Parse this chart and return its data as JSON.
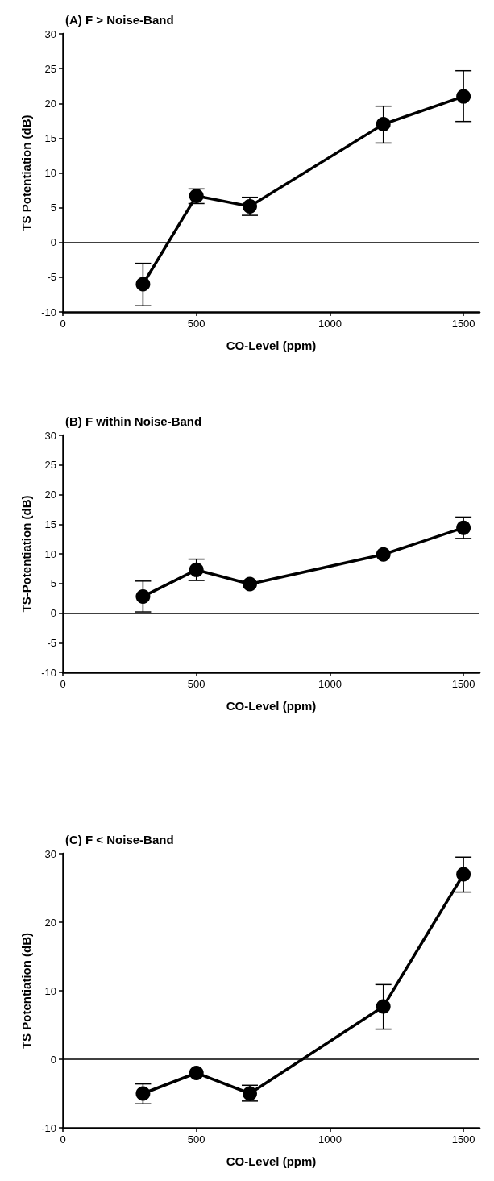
{
  "chart_data": [
    {
      "type": "line",
      "title": "(A) F > Noise-Band",
      "xlabel": "CO-Level (ppm)",
      "ylabel": "TS Potentiation (dB)",
      "x": [
        300,
        500,
        700,
        1200,
        1500
      ],
      "series": [
        {
          "color": "#000000",
          "values": [
            -6,
            6.7,
            5.2,
            17,
            21
          ],
          "errors": [
            [
              -9.1,
              -3
            ],
            [
              5.6,
              7.7
            ],
            [
              3.9,
              6.5
            ],
            [
              14.3,
              19.6
            ],
            [
              17.4,
              24.7
            ]
          ]
        }
      ],
      "xlim": [
        0,
        1560
      ],
      "xticks": [
        0,
        500,
        1000,
        1500
      ],
      "ylim": [
        -10,
        30
      ],
      "yticks": [
        -10,
        -5,
        0,
        5,
        10,
        15,
        20,
        25,
        30
      ],
      "ref_lines": [
        {
          "axis": "y",
          "value": 0,
          "color": "#000000"
        }
      ],
      "marker": "circle",
      "grid": false
    },
    {
      "type": "line",
      "title": "(B) F within Noise-Band",
      "xlabel": "CO-Level (ppm)",
      "ylabel": "TS-Potentiation (dB)",
      "x": [
        300,
        500,
        700,
        1200,
        1500
      ],
      "series": [
        {
          "color": "#000000",
          "values": [
            2.8,
            7.3,
            4.9,
            9.9,
            14.4
          ],
          "errors": [
            [
              0.2,
              5.4
            ],
            [
              5.5,
              9.1
            ],
            null,
            null,
            [
              12.6,
              16.2
            ]
          ]
        }
      ],
      "xlim": [
        0,
        1560
      ],
      "xticks": [
        0,
        500,
        1000,
        1500
      ],
      "ylim": [
        -10,
        30
      ],
      "yticks": [
        -10,
        -5,
        0,
        5,
        10,
        15,
        20,
        25,
        30
      ],
      "ref_lines": [
        {
          "axis": "y",
          "value": 0,
          "color": "#000000"
        }
      ],
      "marker": "circle",
      "grid": false
    },
    {
      "type": "line",
      "title": "(C) F < Noise-Band",
      "xlabel": "CO-Level (ppm)",
      "ylabel": "TS Potentiation (dB)",
      "x": [
        300,
        500,
        700,
        1200,
        1500
      ],
      "series": [
        {
          "color": "#000000",
          "values": [
            -5,
            -2,
            -5,
            7.7,
            27
          ],
          "errors": [
            [
              -6.5,
              -3.6
            ],
            null,
            [
              -6.1,
              -3.8
            ],
            [
              4.4,
              10.9
            ],
            [
              24.4,
              29.5
            ]
          ]
        }
      ],
      "xlim": [
        0,
        1560
      ],
      "xticks": [
        0,
        500,
        1000,
        1500
      ],
      "ylim": [
        -10,
        30
      ],
      "yticks": [
        -10,
        0,
        10,
        20,
        30
      ],
      "ref_lines": [
        {
          "axis": "y",
          "value": 0,
          "color": "#000000"
        }
      ],
      "marker": "circle",
      "grid": false
    }
  ]
}
